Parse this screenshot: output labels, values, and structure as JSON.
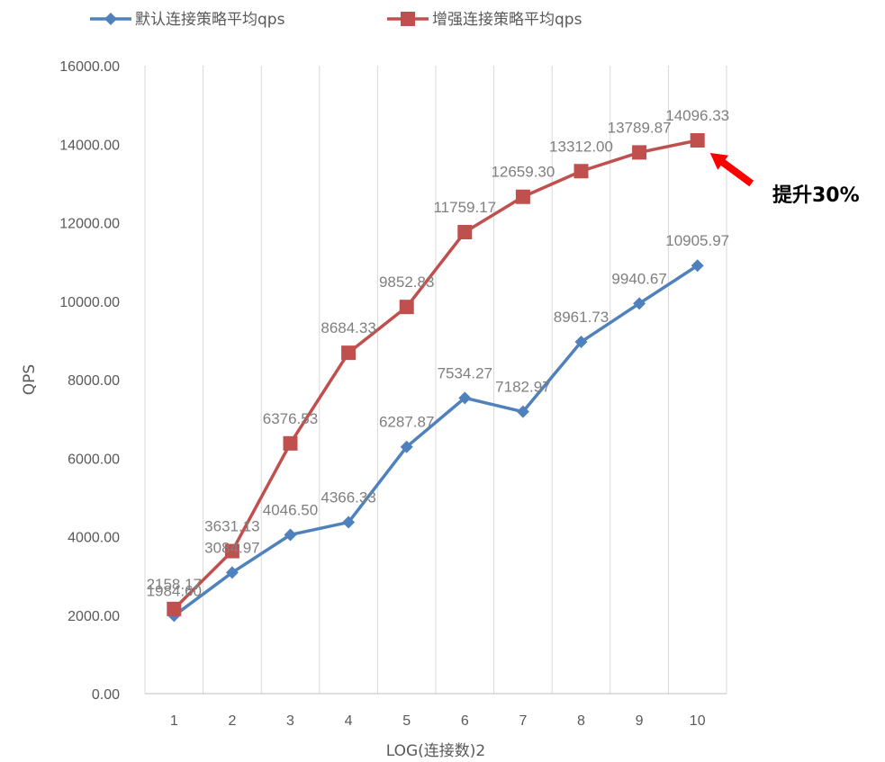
{
  "chart_data": {
    "type": "line",
    "title": "",
    "xlabel": "LOG(连接数)2",
    "ylabel": "QPS",
    "categories": [
      "1",
      "2",
      "3",
      "4",
      "5",
      "6",
      "7",
      "8",
      "9",
      "10"
    ],
    "ylim": [
      0,
      16000
    ],
    "yticks": [
      "0.00",
      "2000.00",
      "4000.00",
      "6000.00",
      "8000.00",
      "10000.00",
      "12000.00",
      "14000.00",
      "16000.00"
    ],
    "grid": "vertical",
    "legend_position": "top",
    "series": [
      {
        "name": "默认连接策略平均qps",
        "color": "#4f81bd",
        "marker": "diamond",
        "values": [
          1984.6,
          3084.97,
          4046.5,
          4366.33,
          6287.87,
          7534.27,
          7182.97,
          8961.73,
          9940.67,
          10905.97
        ],
        "labels": [
          "1984.60",
          "3084.97",
          "4046.50",
          "4366.33",
          "6287.87",
          "7534.27",
          "7182.97",
          "8961.73",
          "9940.67",
          "10905.97"
        ]
      },
      {
        "name": "增强连接策略平均qps",
        "color": "#c0504d",
        "marker": "square",
        "values": [
          2158.17,
          3631.13,
          6376.53,
          8684.33,
          9852.83,
          11759.17,
          12659.3,
          13312.0,
          13789.87,
          14096.33
        ],
        "labels": [
          "2158.17",
          "3631.13",
          "6376.53",
          "8684.33",
          "9852.83",
          "11759.17",
          "12659.30",
          "13312.00",
          "13789.87",
          "14096.33"
        ]
      }
    ],
    "annotation": {
      "text": "提升30%",
      "arrow_color": "#ff0000",
      "points_to": "增强连接策略平均qps @ 10"
    }
  }
}
